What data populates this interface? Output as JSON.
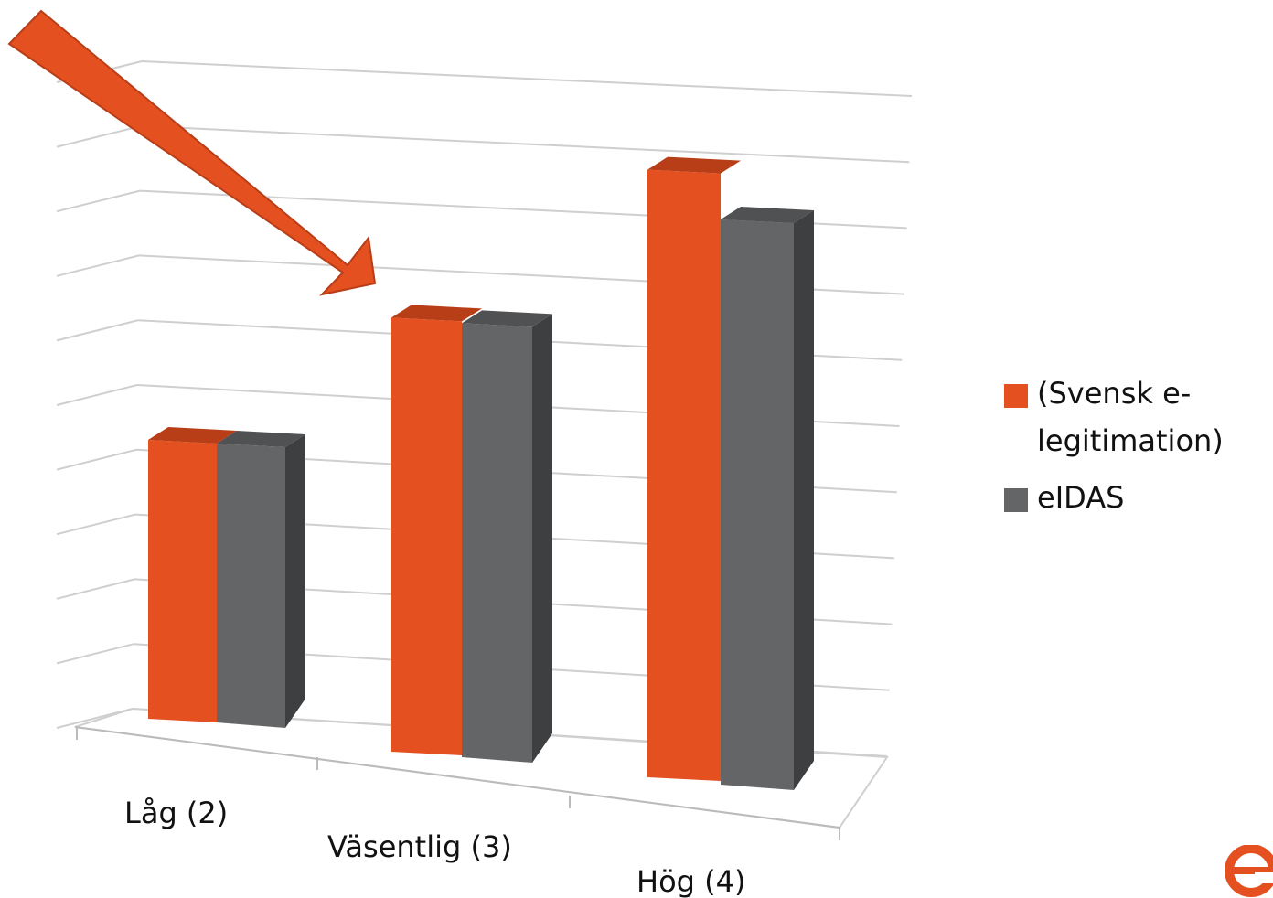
{
  "chart_data": {
    "type": "bar",
    "categories": [
      "Låg (2)",
      "Väsentlig (3)",
      "Hög (4)"
    ],
    "series": [
      {
        "name": "(Svensk e-legitimation)",
        "values": [
          2,
          3,
          4.3
        ],
        "color": "#E4501F",
        "top_color": "#B83E17"
      },
      {
        "name": "eIDAS",
        "values": [
          2,
          3,
          4
        ],
        "color": "#646567",
        "top_color": "#505153",
        "side_color": "#3E3F41"
      }
    ],
    "ylim": [
      0,
      5.3
    ],
    "grid": true,
    "legend_position": "right",
    "three_d": true,
    "annotation": "orange-arrow-pointing-to-väsentlig"
  },
  "legend": {
    "items": [
      {
        "label": "(Svensk e-legitimation)",
        "color": "#E4501F"
      },
      {
        "label": "eIDAS",
        "color": "#646567"
      }
    ]
  },
  "logo": {
    "icon": "e-legitimation-logo",
    "color": "#E4501F"
  }
}
